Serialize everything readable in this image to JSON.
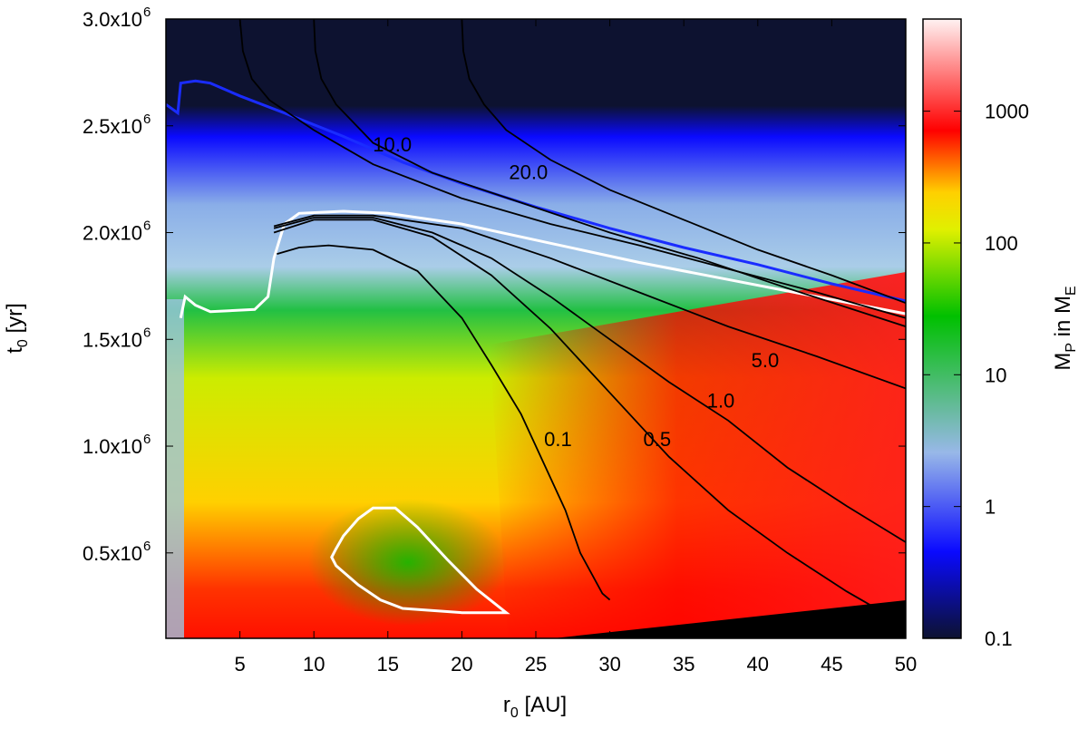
{
  "chart_data": {
    "type": "heatmap",
    "title": "",
    "xlabel": "r",
    "xlabel_sub": "0",
    "xlabel_unit": " [AU]",
    "ylabel": "t",
    "ylabel_sub": "0",
    "ylabel_unit": " [yr]",
    "xlim": [
      0,
      50
    ],
    "ylim": [
      100000,
      3000000
    ],
    "x_ticks": [
      5,
      10,
      15,
      20,
      25,
      30,
      35,
      40,
      45,
      50
    ],
    "x_tick_labels": [
      "5",
      "10",
      "15",
      "20",
      "25",
      "30",
      "35",
      "40",
      "45",
      "50"
    ],
    "y_ticks": [
      {
        "value": 500000,
        "mant": "0.5x10",
        "exp": "6"
      },
      {
        "value": 1000000,
        "mant": "1.0x10",
        "exp": "6"
      },
      {
        "value": 1500000,
        "mant": "1.5x10",
        "exp": "6"
      },
      {
        "value": 2000000,
        "mant": "2.0x10",
        "exp": "6"
      },
      {
        "value": 2500000,
        "mant": "2.5x10",
        "exp": "6"
      },
      {
        "value": 3000000,
        "mant": "3.0x10",
        "exp": "6"
      }
    ],
    "colorbar": {
      "label_main": "M",
      "label_sub1": "P",
      "label_mid": " in M",
      "label_sub2": "E",
      "scale": "log",
      "range": [
        0.1,
        5000
      ],
      "ticks": [
        {
          "value": 0.1,
          "label": "0.1"
        },
        {
          "value": 1,
          "label": "1"
        },
        {
          "value": 10,
          "label": "10"
        },
        {
          "value": 100,
          "label": "100"
        },
        {
          "value": 1000,
          "label": "1000"
        }
      ],
      "colors": [
        "#0d1230",
        "#0a0aff",
        "#98b8e8",
        "#00c000",
        "#e0f000",
        "#ffd000",
        "#ff0000",
        "#fff2f2"
      ]
    },
    "contours": [
      {
        "label": "0.1",
        "label_at": [
          26.5,
          1000000.0
        ],
        "color": "#000000",
        "points": [
          [
            7.5,
            1900000.0
          ],
          [
            9,
            1930000.0
          ],
          [
            11,
            1940000.0
          ],
          [
            14,
            1920000.0
          ],
          [
            17,
            1820000.0
          ],
          [
            20,
            1600000.0
          ],
          [
            22,
            1380000.0
          ],
          [
            24,
            1150000.0
          ],
          [
            25,
            1000000.0
          ],
          [
            26,
            850000.0
          ],
          [
            27,
            700000.0
          ],
          [
            28,
            500000.0
          ],
          [
            29.5,
            310000.0
          ],
          [
            30,
            280000.0
          ]
        ]
      },
      {
        "label": "0.5",
        "label_at": [
          33.2,
          1000000.0
        ],
        "color": "#000000",
        "points": [
          [
            7.3,
            2000000.0
          ],
          [
            10,
            2060000.0
          ],
          [
            14,
            2060000.0
          ],
          [
            18,
            1980000.0
          ],
          [
            22,
            1800000.0
          ],
          [
            26,
            1550000.0
          ],
          [
            30,
            1250000.0
          ],
          [
            34,
            950000.0
          ],
          [
            38,
            700000.0
          ],
          [
            42,
            500000.0
          ],
          [
            46,
            320000.0
          ],
          [
            49,
            200000.0
          ],
          [
            50,
            170000.0
          ]
        ]
      },
      {
        "label": "1.0",
        "label_at": [
          37.5,
          1180000.0
        ],
        "color": "#000000",
        "points": [
          [
            7.3,
            2020000.0
          ],
          [
            10,
            2070000.0
          ],
          [
            14,
            2070000.0
          ],
          [
            18,
            2000000.0
          ],
          [
            22,
            1880000.0
          ],
          [
            26,
            1700000.0
          ],
          [
            30,
            1500000.0
          ],
          [
            34,
            1300000.0
          ],
          [
            38,
            1120000.0
          ],
          [
            42,
            900000.0
          ],
          [
            46,
            720000.0
          ],
          [
            50,
            550000.0
          ]
        ]
      },
      {
        "label": "5.0",
        "label_at": [
          40.5,
          1370000.0
        ],
        "color": "#000000",
        "points": [
          [
            7.3,
            2030000.0
          ],
          [
            10,
            2080000.0
          ],
          [
            14,
            2080000.0
          ],
          [
            20,
            2020000.0
          ],
          [
            26,
            1880000.0
          ],
          [
            32,
            1720000.0
          ],
          [
            38,
            1560000.0
          ],
          [
            44,
            1420000.0
          ],
          [
            50,
            1270000.0
          ]
        ]
      },
      {
        "label": "10.0",
        "label_at": [
          15.3,
          2380000.0
        ],
        "color": "#000000",
        "points": [
          [
            10,
            3000000.0
          ],
          [
            10.1,
            2850000.0
          ],
          [
            10.5,
            2720000.0
          ],
          [
            11.5,
            2600000.0
          ],
          [
            14,
            2420000.0
          ],
          [
            18,
            2280000.0
          ],
          [
            24,
            2140000.0
          ],
          [
            30,
            2000000.0
          ],
          [
            36,
            1880000.0
          ],
          [
            42,
            1740000.0
          ],
          [
            50,
            1560000.0
          ]
        ]
      },
      {
        "label": "20.0",
        "label_at": [
          24.5,
          2250000.0
        ],
        "color": "#000000",
        "points": [
          [
            20,
            3000000.0
          ],
          [
            20.1,
            2850000.0
          ],
          [
            20.5,
            2720000.0
          ],
          [
            21.5,
            2600000.0
          ],
          [
            23,
            2480000.0
          ],
          [
            26,
            2340000.0
          ],
          [
            30,
            2200000.0
          ],
          [
            35,
            2060000.0
          ],
          [
            40,
            1920000.0
          ],
          [
            45,
            1800000.0
          ],
          [
            50,
            1670000.0
          ]
        ]
      },
      {
        "label": "",
        "color": "#000000",
        "points": [
          [
            5,
            3000000.0
          ],
          [
            5.2,
            2850000.0
          ],
          [
            5.8,
            2720000.0
          ],
          [
            7,
            2620000.0
          ],
          [
            10,
            2480000.0
          ],
          [
            14,
            2320000.0
          ],
          [
            20,
            2160000.0
          ],
          [
            26,
            2040000.0
          ],
          [
            32,
            1940000.0
          ],
          [
            38,
            1830000.0
          ],
          [
            44,
            1720000.0
          ],
          [
            50,
            1600000.0
          ]
        ]
      }
    ],
    "white_contours": [
      {
        "points": [
          [
            1.0,
            1600000.0
          ],
          [
            1.3,
            1700000.0
          ],
          [
            2,
            1660000.0
          ],
          [
            3,
            1630000.0
          ],
          [
            6,
            1640000.0
          ],
          [
            6.9,
            1700000.0
          ],
          [
            7.3,
            1880000.0
          ],
          [
            8,
            2040000.0
          ],
          [
            9,
            2090000.0
          ],
          [
            12,
            2100000.0
          ],
          [
            15,
            2090000.0
          ],
          [
            20,
            2040000.0
          ],
          [
            26,
            1950000.0
          ],
          [
            32,
            1860000.0
          ],
          [
            38,
            1780000.0
          ],
          [
            44,
            1700000.0
          ],
          [
            50,
            1620000.0
          ]
        ]
      },
      {
        "points": [
          [
            11.5,
            520000.0
          ],
          [
            12,
            580000.0
          ],
          [
            13,
            660000.0
          ],
          [
            14,
            710000.0
          ],
          [
            15.5,
            710000.0
          ],
          [
            17,
            620000.0
          ],
          [
            19,
            470000.0
          ],
          [
            21,
            330000.0
          ],
          [
            23,
            220000.0
          ],
          [
            20,
            220000.0
          ],
          [
            16,
            240000.0
          ],
          [
            14.5,
            280000.0
          ],
          [
            13,
            350000.0
          ],
          [
            11.5,
            440000.0
          ],
          [
            11.2,
            480000.0
          ],
          [
            11.5,
            520000.0
          ]
        ]
      }
    ],
    "blue_contour": {
      "points": [
        [
          0,
          2600000.0
        ],
        [
          0.8,
          2560000.0
        ],
        [
          1,
          2700000.0
        ],
        [
          2,
          2710000.0
        ],
        [
          3,
          2700000.0
        ],
        [
          5,
          2640000.0
        ],
        [
          8,
          2560000.0
        ],
        [
          12,
          2450000.0
        ],
        [
          16,
          2330000.0
        ],
        [
          20,
          2230000.0
        ],
        [
          25,
          2120000.0
        ],
        [
          30,
          2020000.0
        ],
        [
          35,
          1930000.0
        ],
        [
          40,
          1850000.0
        ],
        [
          45,
          1760000.0
        ],
        [
          50,
          1680000.0
        ]
      ]
    }
  }
}
